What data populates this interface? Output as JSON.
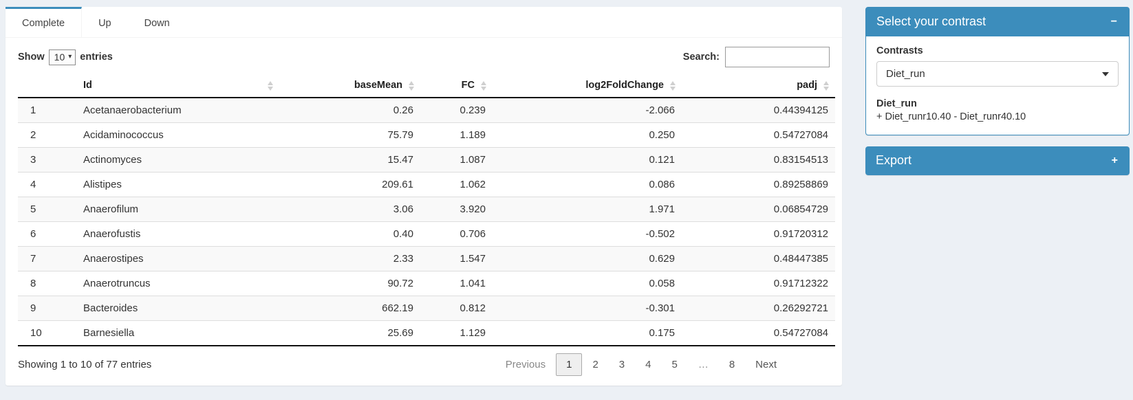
{
  "colors": {
    "accent": "#3c8dbc",
    "page_background": "#ecf0f5"
  },
  "tabs": {
    "items": [
      {
        "label": "Complete",
        "active": true
      },
      {
        "label": "Up",
        "active": false
      },
      {
        "label": "Down",
        "active": false
      }
    ]
  },
  "table_controls": {
    "show_label": "Show",
    "page_length": "10",
    "entries_label": "entries",
    "search_label": "Search:",
    "search_value": ""
  },
  "table": {
    "columns": [
      {
        "label": "",
        "key": "num",
        "align": "left",
        "sortable": false
      },
      {
        "label": "Id",
        "key": "id",
        "align": "left",
        "sortable": true
      },
      {
        "label": "baseMean",
        "key": "baseMean",
        "align": "right",
        "sortable": true
      },
      {
        "label": "FC",
        "key": "fc",
        "align": "right",
        "sortable": true
      },
      {
        "label": "log2FoldChange",
        "key": "log2fc",
        "align": "right",
        "sortable": true
      },
      {
        "label": "padj",
        "key": "padj",
        "align": "right",
        "sortable": true
      }
    ],
    "rows": [
      {
        "num": "1",
        "id": "Acetanaerobacterium",
        "baseMean": "0.26",
        "fc": "0.239",
        "log2fc": "-2.066",
        "padj": "0.44394125"
      },
      {
        "num": "2",
        "id": "Acidaminococcus",
        "baseMean": "75.79",
        "fc": "1.189",
        "log2fc": "0.250",
        "padj": "0.54727084"
      },
      {
        "num": "3",
        "id": "Actinomyces",
        "baseMean": "15.47",
        "fc": "1.087",
        "log2fc": "0.121",
        "padj": "0.83154513"
      },
      {
        "num": "4",
        "id": "Alistipes",
        "baseMean": "209.61",
        "fc": "1.062",
        "log2fc": "0.086",
        "padj": "0.89258869"
      },
      {
        "num": "5",
        "id": "Anaerofilum",
        "baseMean": "3.06",
        "fc": "3.920",
        "log2fc": "1.971",
        "padj": "0.06854729"
      },
      {
        "num": "6",
        "id": "Anaerofustis",
        "baseMean": "0.40",
        "fc": "0.706",
        "log2fc": "-0.502",
        "padj": "0.91720312"
      },
      {
        "num": "7",
        "id": "Anaerostipes",
        "baseMean": "2.33",
        "fc": "1.547",
        "log2fc": "0.629",
        "padj": "0.48447385"
      },
      {
        "num": "8",
        "id": "Anaerotruncus",
        "baseMean": "90.72",
        "fc": "1.041",
        "log2fc": "0.058",
        "padj": "0.91712322"
      },
      {
        "num": "9",
        "id": "Bacteroides",
        "baseMean": "662.19",
        "fc": "0.812",
        "log2fc": "-0.301",
        "padj": "0.26292721"
      },
      {
        "num": "10",
        "id": "Barnesiella",
        "baseMean": "25.69",
        "fc": "1.129",
        "log2fc": "0.175",
        "padj": "0.54727084"
      }
    ],
    "info": "Showing 1 to 10 of 77 entries",
    "pagination": {
      "prev_label": "Previous",
      "pages": [
        "1",
        "2",
        "3",
        "4",
        "5",
        "…",
        "8"
      ],
      "active_page": "1",
      "disabled_items": [
        "Previous",
        "…"
      ],
      "next_label": "Next"
    }
  },
  "contrast_panel": {
    "title": "Select your contrast",
    "collapse_icon": "−",
    "contrasts_label": "Contrasts",
    "selected_contrast": "Diet_run",
    "contrast_name": "Diet_run",
    "contrast_formula": "+ Diet_runr10.40 - Diet_runr40.10"
  },
  "export_panel": {
    "title": "Export",
    "collapse_icon": "+"
  }
}
